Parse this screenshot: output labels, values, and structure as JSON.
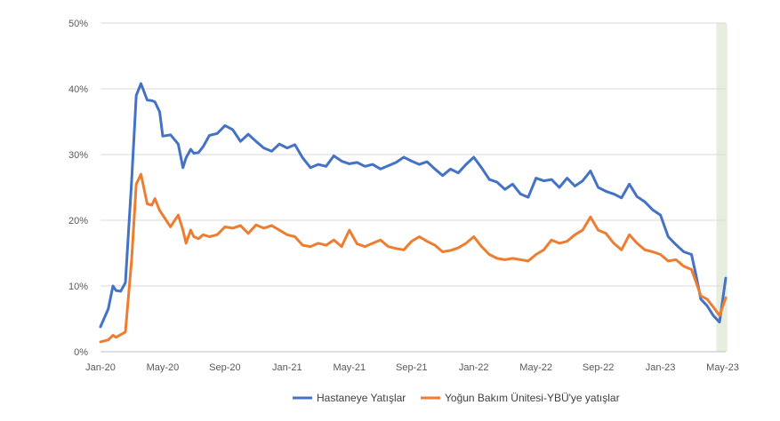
{
  "chart_data": {
    "type": "line",
    "title": "",
    "xlabel": "",
    "ylabel": "",
    "ylim": [
      0,
      50
    ],
    "y_ticks": [
      0,
      10,
      20,
      30,
      40,
      50
    ],
    "y_tick_labels": [
      "0%",
      "10%",
      "20%",
      "30%",
      "40%",
      "50%"
    ],
    "x_range": [
      0,
      40.2
    ],
    "x_ticks": [
      0,
      4,
      8,
      12,
      16,
      20,
      24,
      28,
      32,
      36,
      40
    ],
    "x_tick_labels": [
      "Jan-20",
      "May-20",
      "Sep-20",
      "Jan-21",
      "May-21",
      "Sep-21",
      "Jan-22",
      "May-22",
      "Sep-22",
      "Jan-23",
      "May-23"
    ],
    "grid": "horizontal",
    "legend_position": "bottom",
    "highlight_band": {
      "x_start": 39.6,
      "x_end": 40.3,
      "color": "#e7eee0"
    },
    "series": [
      {
        "name": "Hastaneye Yatışlar",
        "color": "#4472c4",
        "x": [
          0,
          0.5,
          0.8,
          1.0,
          1.3,
          1.6,
          2.0,
          2.3,
          2.6,
          3.0,
          3.3,
          3.5,
          3.8,
          4.0,
          4.5,
          5.0,
          5.3,
          5.5,
          5.8,
          6.0,
          6.3,
          6.6,
          7.0,
          7.5,
          8.0,
          8.5,
          9.0,
          9.5,
          10.0,
          10.5,
          11.0,
          11.5,
          12.0,
          12.5,
          13.0,
          13.5,
          14.0,
          14.5,
          15.0,
          15.5,
          16.0,
          16.5,
          17.0,
          17.5,
          18.0,
          18.5,
          19.0,
          19.5,
          20.0,
          20.5,
          21.0,
          21.5,
          22.0,
          22.5,
          23.0,
          23.5,
          24.0,
          24.5,
          25.0,
          25.5,
          26.0,
          26.5,
          27.0,
          27.5,
          28.0,
          28.5,
          29.0,
          29.5,
          30.0,
          30.5,
          31.0,
          31.5,
          32.0,
          32.5,
          33.0,
          33.5,
          34.0,
          34.5,
          35.0,
          35.5,
          36.0,
          36.5,
          37.0,
          37.5,
          38.0,
          38.3,
          38.6,
          39.0,
          39.4,
          39.8,
          40.2
        ],
        "values": [
          3.8,
          6.5,
          10.0,
          9.3,
          9.2,
          10.5,
          26.0,
          39.0,
          40.8,
          38.3,
          38.2,
          38.0,
          36.5,
          32.8,
          33.0,
          31.6,
          28.0,
          29.5,
          30.8,
          30.2,
          30.3,
          31.2,
          32.9,
          33.2,
          34.4,
          33.8,
          32.0,
          33.1,
          32.0,
          31.0,
          30.5,
          31.6,
          31.0,
          31.5,
          29.5,
          28.0,
          28.5,
          28.2,
          29.8,
          29.0,
          28.6,
          28.8,
          28.2,
          28.5,
          27.8,
          28.3,
          28.8,
          29.6,
          29.0,
          28.5,
          28.9,
          27.8,
          26.8,
          27.8,
          27.2,
          28.5,
          29.6,
          28.0,
          26.2,
          25.8,
          24.7,
          25.5,
          24.0,
          23.5,
          26.4,
          26.0,
          26.2,
          25.0,
          26.4,
          25.2,
          26.0,
          27.5,
          25.0,
          24.4,
          24.0,
          23.4,
          25.5,
          23.6,
          22.8,
          21.6,
          20.8,
          17.5,
          16.3,
          15.2,
          14.8,
          11.5,
          8.0,
          7.0,
          5.5,
          4.5,
          11.2
        ]
      },
      {
        "name": "Yoğun Bakım Ünitesi-YBÜ'ye yatışlar",
        "color": "#ed7d31",
        "x": [
          0,
          0.5,
          0.8,
          1.0,
          1.3,
          1.6,
          2.0,
          2.3,
          2.6,
          3.0,
          3.3,
          3.5,
          3.8,
          4.0,
          4.5,
          5.0,
          5.3,
          5.5,
          5.8,
          6.0,
          6.3,
          6.6,
          7.0,
          7.5,
          8.0,
          8.5,
          9.0,
          9.5,
          10.0,
          10.5,
          11.0,
          11.5,
          12.0,
          12.5,
          13.0,
          13.5,
          14.0,
          14.5,
          15.0,
          15.5,
          16.0,
          16.5,
          17.0,
          17.5,
          18.0,
          18.5,
          19.0,
          19.5,
          20.0,
          20.5,
          21.0,
          21.5,
          22.0,
          22.5,
          23.0,
          23.5,
          24.0,
          24.5,
          25.0,
          25.5,
          26.0,
          26.5,
          27.0,
          27.5,
          28.0,
          28.5,
          29.0,
          29.5,
          30.0,
          30.5,
          31.0,
          31.5,
          32.0,
          32.5,
          33.0,
          33.5,
          34.0,
          34.5,
          35.0,
          35.5,
          36.0,
          36.5,
          37.0,
          37.5,
          38.0,
          38.3,
          38.6,
          39.0,
          39.4,
          39.8,
          40.2
        ],
        "values": [
          1.5,
          1.8,
          2.5,
          2.2,
          2.6,
          3.0,
          14.0,
          25.5,
          27.0,
          22.5,
          22.3,
          23.3,
          21.5,
          20.8,
          19.0,
          20.8,
          18.5,
          16.5,
          18.5,
          17.5,
          17.2,
          17.8,
          17.5,
          17.8,
          19.0,
          18.8,
          19.2,
          18.0,
          19.3,
          18.8,
          19.2,
          18.5,
          17.8,
          17.5,
          16.2,
          16.0,
          16.5,
          16.2,
          17.0,
          16.0,
          18.5,
          16.4,
          16.0,
          16.5,
          17.0,
          16.0,
          15.7,
          15.5,
          16.8,
          17.5,
          16.8,
          16.2,
          15.2,
          15.4,
          15.8,
          16.5,
          17.5,
          16.0,
          14.8,
          14.2,
          14.0,
          14.2,
          14.0,
          13.8,
          14.8,
          15.5,
          17.0,
          16.5,
          16.8,
          17.8,
          18.5,
          20.5,
          18.5,
          18.0,
          16.5,
          15.5,
          17.8,
          16.5,
          15.5,
          15.2,
          14.8,
          13.8,
          14.0,
          13.0,
          12.5,
          10.5,
          8.5,
          8.0,
          6.8,
          5.5,
          8.2
        ]
      }
    ]
  }
}
